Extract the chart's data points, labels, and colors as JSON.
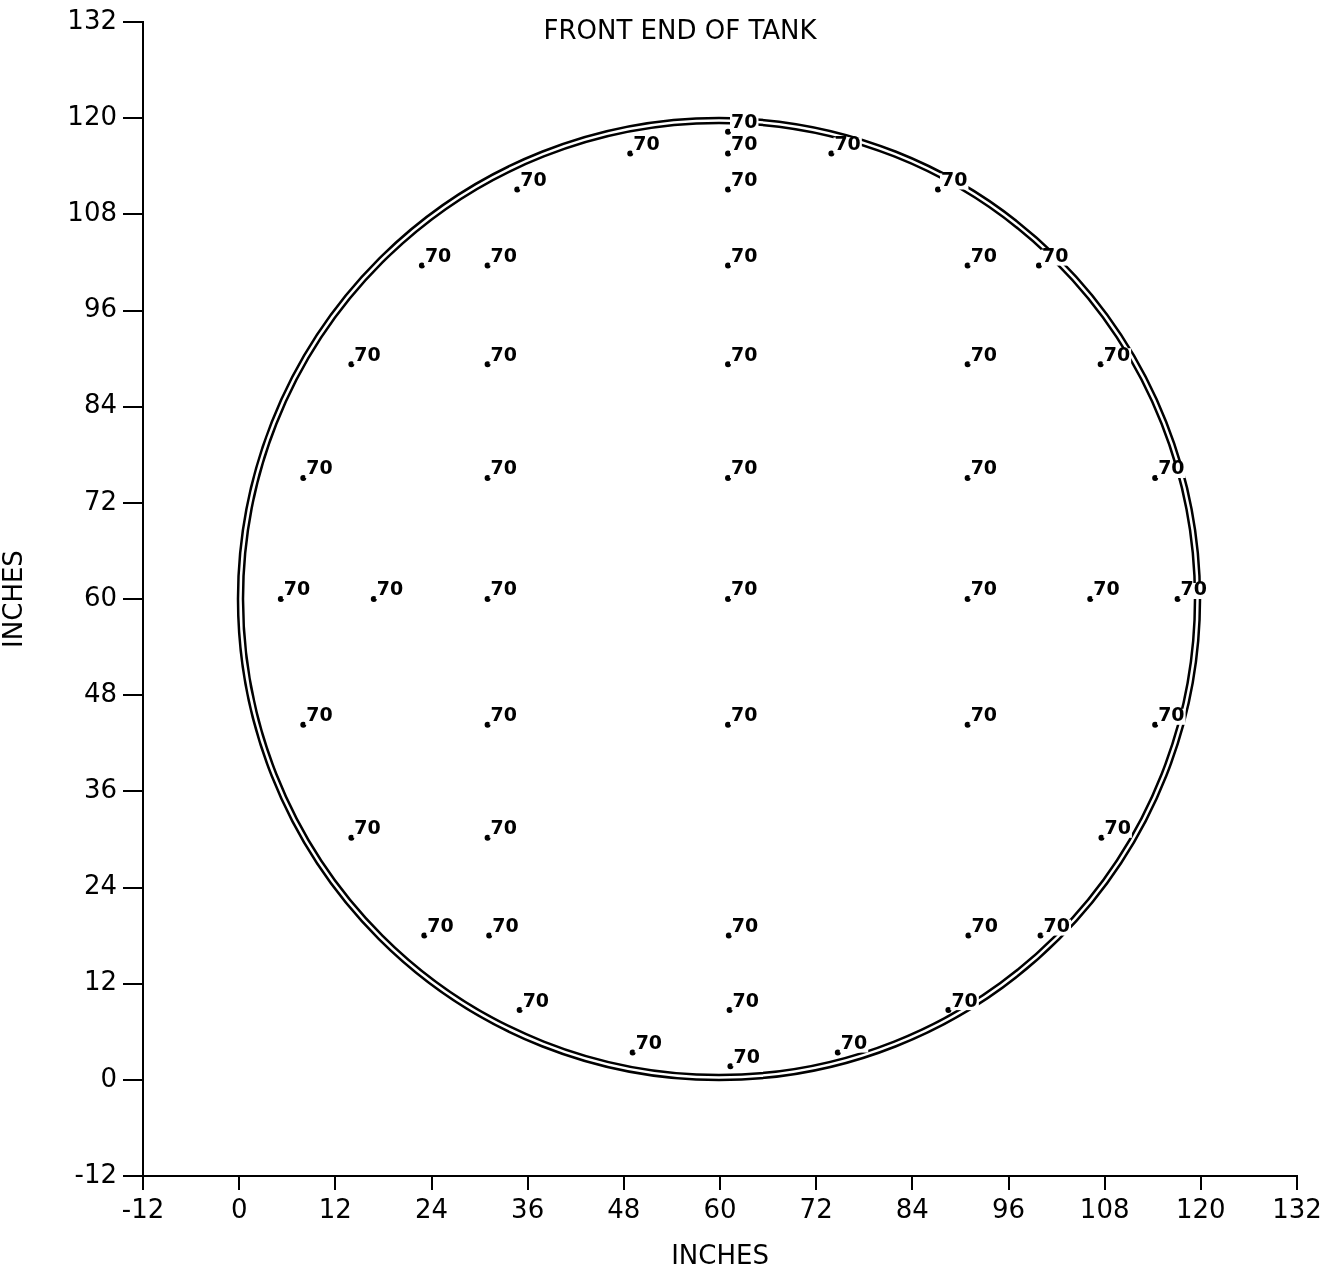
{
  "chart_data": {
    "type": "scatter",
    "title": "FRONT END OF TANK",
    "xlabel": "INCHES",
    "ylabel": "INCHES",
    "xlim": [
      -12,
      132
    ],
    "xticks": [
      -12,
      0,
      12,
      24,
      36,
      48,
      60,
      72,
      84,
      96,
      108,
      120,
      132
    ],
    "ylim": [
      -12,
      132
    ],
    "yticks": [
      -12,
      0,
      12,
      24,
      36,
      48,
      60,
      72,
      84,
      96,
      108,
      120,
      132
    ],
    "series": [
      {
        "color": "#000000",
        "marker": "circle",
        "x": [
          61,
          48.8,
          61,
          73.9,
          34.7,
          61,
          87.2,
          22.8,
          31,
          61,
          90.9,
          99.8,
          14,
          31,
          61,
          90.9,
          107.5,
          8,
          31,
          61,
          90.9,
          114.3,
          5.2,
          16.8,
          31,
          61,
          90.9,
          106.2,
          117.1,
          8,
          31,
          61,
          90.9,
          114.3,
          14,
          31,
          107.6,
          23.1,
          31.2,
          61.1,
          91,
          100,
          35,
          61.2,
          88.5,
          49.1,
          74.7,
          61.3
        ],
        "values": [
          118.3,
          115.6,
          115.6,
          115.6,
          111.1,
          111.1,
          111.1,
          101.6,
          101.6,
          101.6,
          101.6,
          101.6,
          89.3,
          89.3,
          89.3,
          89.3,
          89.3,
          75.1,
          75.1,
          75.1,
          75.1,
          75.1,
          60,
          60,
          60,
          60,
          60,
          60,
          60,
          44.3,
          44.3,
          44.3,
          44.3,
          44.3,
          30.2,
          30.2,
          30.2,
          18,
          18,
          18,
          18,
          18,
          8.7,
          8.7,
          8.7,
          3.4,
          3.4,
          1.7
        ]
      }
    ],
    "annotations": [
      {
        "text": "70",
        "x": 61,
        "y": 118.3
      },
      {
        "text": "70",
        "x": 48.8,
        "y": 115.6
      },
      {
        "text": "70",
        "x": 61,
        "y": 115.6
      },
      {
        "text": "70",
        "x": 73.9,
        "y": 115.6
      },
      {
        "text": "70",
        "x": 34.7,
        "y": 111.1
      },
      {
        "text": "70",
        "x": 61,
        "y": 111.1
      },
      {
        "text": "70",
        "x": 87.2,
        "y": 111.1
      },
      {
        "text": "70",
        "x": 22.8,
        "y": 101.6
      },
      {
        "text": "70",
        "x": 31,
        "y": 101.6
      },
      {
        "text": "70",
        "x": 61,
        "y": 101.6
      },
      {
        "text": "70",
        "x": 90.9,
        "y": 101.6
      },
      {
        "text": "70",
        "x": 99.8,
        "y": 101.6
      },
      {
        "text": "70",
        "x": 14,
        "y": 89.3
      },
      {
        "text": "70",
        "x": 31,
        "y": 89.3
      },
      {
        "text": "70",
        "x": 61,
        "y": 89.3
      },
      {
        "text": "70",
        "x": 90.9,
        "y": 89.3
      },
      {
        "text": "70",
        "x": 107.5,
        "y": 89.3
      },
      {
        "text": "70",
        "x": 8,
        "y": 75.1
      },
      {
        "text": "70",
        "x": 31,
        "y": 75.1
      },
      {
        "text": "70",
        "x": 61,
        "y": 75.1
      },
      {
        "text": "70",
        "x": 90.9,
        "y": 75.1
      },
      {
        "text": "70",
        "x": 114.3,
        "y": 75.1
      },
      {
        "text": "70",
        "x": 5.2,
        "y": 60
      },
      {
        "text": "70",
        "x": 16.8,
        "y": 60
      },
      {
        "text": "70",
        "x": 31,
        "y": 60
      },
      {
        "text": "70",
        "x": 61,
        "y": 60
      },
      {
        "text": "70",
        "x": 90.9,
        "y": 60
      },
      {
        "text": "70",
        "x": 106.2,
        "y": 60
      },
      {
        "text": "70",
        "x": 117.1,
        "y": 60
      },
      {
        "text": "70",
        "x": 8,
        "y": 44.3
      },
      {
        "text": "70",
        "x": 31,
        "y": 44.3
      },
      {
        "text": "70",
        "x": 61,
        "y": 44.3
      },
      {
        "text": "70",
        "x": 90.9,
        "y": 44.3
      },
      {
        "text": "70",
        "x": 114.3,
        "y": 44.3
      },
      {
        "text": "70",
        "x": 14,
        "y": 30.2
      },
      {
        "text": "70",
        "x": 31,
        "y": 30.2
      },
      {
        "text": "70",
        "x": 107.6,
        "y": 30.2
      },
      {
        "text": "70",
        "x": 23.1,
        "y": 18
      },
      {
        "text": "70",
        "x": 31.2,
        "y": 18
      },
      {
        "text": "70",
        "x": 61.1,
        "y": 18
      },
      {
        "text": "70",
        "x": 91,
        "y": 18
      },
      {
        "text": "70",
        "x": 100,
        "y": 18
      },
      {
        "text": "70",
        "x": 35,
        "y": 8.7
      },
      {
        "text": "70",
        "x": 61.2,
        "y": 8.7
      },
      {
        "text": "70",
        "x": 88.5,
        "y": 8.7
      },
      {
        "text": "70",
        "x": 49.1,
        "y": 3.4
      },
      {
        "text": "70",
        "x": 74.7,
        "y": 3.4
      },
      {
        "text": "70",
        "x": 61.3,
        "y": 1.7
      }
    ]
  }
}
